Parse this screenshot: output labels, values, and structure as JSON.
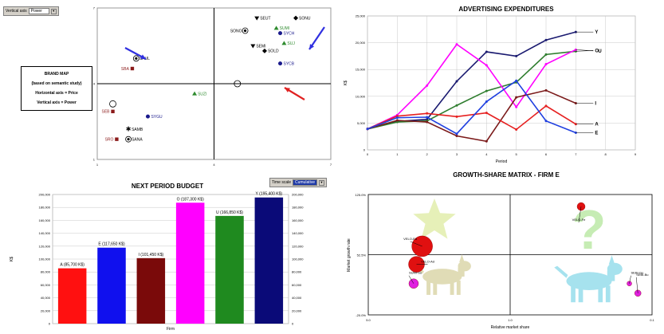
{
  "controls": {
    "vertical_axis": {
      "label": "Vertical axis",
      "value": "Power"
    },
    "horizontal_axis": {
      "label": "Horizontal axis",
      "value": "Price"
    },
    "time_scale": {
      "label": "Time scale",
      "value": "Cumulative"
    }
  },
  "brand_box": {
    "line1": "BRAND MAP",
    "line2": "(based on semantic study)",
    "line3": "Horizontal axis = Price",
    "line4": "Vertical axis = Power"
  },
  "chart_data": [
    {
      "type": "scatter",
      "id": "brand-map",
      "title": "",
      "xlim": [
        1,
        7
      ],
      "ylim": [
        1,
        7
      ],
      "x_ticks": [
        "1",
        "4",
        "7"
      ],
      "y_ticks": [
        "1",
        "4",
        "7"
      ],
      "points": [
        {
          "label": "SEUT",
          "x": 5.1,
          "y": 6.6,
          "color": "#000000",
          "marker": "tri-down"
        },
        {
          "label": "SONU",
          "x": 6.1,
          "y": 6.6,
          "color": "#000000",
          "marker": "diamond"
        },
        {
          "label": "SUMI",
          "x": 5.6,
          "y": 6.2,
          "color": "#2e8b2e",
          "marker": "tri-up"
        },
        {
          "label": "SYCH",
          "x": 5.7,
          "y": 6.0,
          "color": "#1a1a8c",
          "marker": "circle"
        },
        {
          "label": "SONO",
          "x": 4.8,
          "y": 6.1,
          "color": "#000000",
          "marker": "ring"
        },
        {
          "label": "SUJ",
          "x": 5.8,
          "y": 5.6,
          "color": "#2e8b2e",
          "marker": "tri-up"
        },
        {
          "label": "SEMI",
          "x": 5.0,
          "y": 5.5,
          "color": "#000000",
          "marker": "tri-down"
        },
        {
          "label": "SOLD",
          "x": 5.3,
          "y": 5.3,
          "color": "#000000",
          "marker": "diamond"
        },
        {
          "label": "SYCB",
          "x": 5.7,
          "y": 4.8,
          "color": "#1a1a8c",
          "marker": "circle"
        },
        {
          "label": "SUZI",
          "x": 3.5,
          "y": 3.6,
          "color": "#2e8b2e",
          "marker": "tri-up"
        },
        {
          "label": "SAUL",
          "x": 2.0,
          "y": 5.0,
          "color": "#000000",
          "marker": "ring"
        },
        {
          "label": "SBA",
          "x": 1.9,
          "y": 4.6,
          "color": "#8b1a1a",
          "marker": "square"
        },
        {
          "label": "SEB",
          "x": 1.4,
          "y": 2.9,
          "color": "#8b1a1a",
          "marker": "square"
        },
        {
          "label": "SYGU",
          "x": 2.3,
          "y": 2.7,
          "color": "#1a1a8c",
          "marker": "circle"
        },
        {
          "label": "SAMB",
          "x": 1.8,
          "y": 2.2,
          "color": "#000000",
          "marker": "star"
        },
        {
          "label": "SRO",
          "x": 1.5,
          "y": 1.8,
          "color": "#8b1a1a",
          "marker": "square"
        },
        {
          "label": "SANA",
          "x": 1.8,
          "y": 1.8,
          "color": "#000000",
          "marker": "ring"
        }
      ],
      "markers": [
        {
          "type": "ring",
          "x": 1.4,
          "y": 3.2
        },
        {
          "type": "ring",
          "x": 4.6,
          "y": 4.0
        }
      ]
    },
    {
      "type": "line",
      "id": "advertising",
      "title": "ADVERTISING EXPENDITURES",
      "xlabel": "Period",
      "ylabel": "K$",
      "x": [
        0,
        1,
        2,
        3,
        4,
        5,
        6,
        7
      ],
      "xlim": [
        0,
        9
      ],
      "ylim": [
        0,
        25000
      ],
      "x_ticks": [
        "0",
        "1",
        "2",
        "3",
        "4",
        "5",
        "6",
        "7",
        "8",
        "9"
      ],
      "y_ticks": [
        "0",
        "5,000",
        "10,000",
        "15,000",
        "20,000",
        "25,000"
      ],
      "series": [
        {
          "name": "Y",
          "color": "#1a1a70",
          "values": [
            3900,
            5300,
            5700,
            12800,
            18300,
            17500,
            20500,
            22000
          ]
        },
        {
          "name": "O",
          "color": "#2e7d2e",
          "values": [
            3900,
            5200,
            5400,
            8300,
            11000,
            12600,
            17800,
            18400
          ]
        },
        {
          "name": "U",
          "color": "#ff00ff",
          "values": [
            3900,
            6500,
            12000,
            19700,
            15800,
            8000,
            16000,
            18700
          ]
        },
        {
          "name": "I",
          "color": "#7b1a1a",
          "values": [
            3900,
            5500,
            5200,
            2600,
            1600,
            9800,
            11100,
            8700
          ]
        },
        {
          "name": "A",
          "color": "#e62020",
          "values": [
            3900,
            6300,
            6800,
            6200,
            6900,
            3800,
            8200,
            4800
          ]
        },
        {
          "name": "E",
          "color": "#2040e0",
          "values": [
            3900,
            6000,
            6100,
            3000,
            9000,
            12900,
            5400,
            3200
          ]
        }
      ]
    },
    {
      "type": "bar",
      "id": "budget",
      "title": "NEXT PERIOD BUDGET",
      "xlabel": "Firm",
      "ylabel": "K$",
      "ylim": [
        0,
        200000
      ],
      "y_ticks": [
        "0",
        "20,000",
        "40,000",
        "60,000",
        "80,000",
        "100,000",
        "120,000",
        "140,000",
        "160,000",
        "180,000",
        "200,000"
      ],
      "bars": [
        {
          "label": "A (85,700 K$)",
          "value": 85700,
          "color": "#ff1010"
        },
        {
          "label": "E (117,650 K$)",
          "value": 117650,
          "color": "#1010ee"
        },
        {
          "label": "I (101,450 K$)",
          "value": 101450,
          "color": "#7a0a0a"
        },
        {
          "label": "O (187,300 K$)",
          "value": 187300,
          "color": "#ff00ff"
        },
        {
          "label": "U (166,850 K$)",
          "value": 166850,
          "color": "#1f8a1f"
        },
        {
          "label": "Y (195,400 K$)",
          "value": 195400,
          "color": "#0a0a78"
        }
      ]
    },
    {
      "type": "scatter",
      "id": "growth-share",
      "title": "GROWTH-SHARE MATRIX - FIRM E",
      "xlabel": "Relative market share",
      "ylabel": "Market growth rate",
      "x_ticks": [
        "5.0",
        "1.0",
        "0.1"
      ],
      "y_ticks": [
        "125.0%",
        "52.5%",
        "-20.0%"
      ],
      "points": [
        {
          "label": "VELO-Fe",
          "relx": 0.75,
          "rely": 0.1,
          "r": 5,
          "color": "#e01010"
        },
        {
          "label": "VELO-Ea",
          "relx": 0.19,
          "rely": 0.43,
          "r": 13,
          "color": "#e01010"
        },
        {
          "label": "VELO-Ad",
          "relx": 0.17,
          "rely": 0.58,
          "r": 10,
          "color": "#e01010"
        },
        {
          "label": "SUMI-Su",
          "relx": 0.16,
          "rely": 0.74,
          "r": 6,
          "color": "#e020e0"
        },
        {
          "label": "SEBI-Gu",
          "relx": 0.92,
          "rely": 0.74,
          "r": 3,
          "color": "#e020e0"
        },
        {
          "label": "SEBI-Bu",
          "relx": 0.95,
          "rely": 0.82,
          "r": 4,
          "color": "#e020e0"
        }
      ]
    }
  ]
}
